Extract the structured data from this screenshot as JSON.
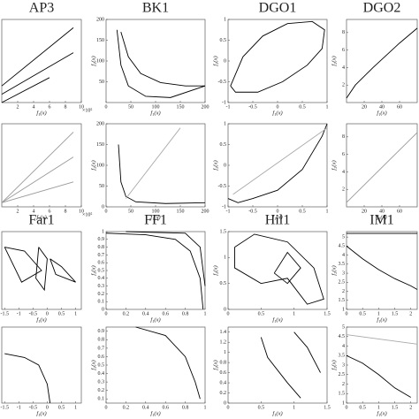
{
  "chart_data": [
    {
      "type": "line",
      "title": "AP3",
      "xlabel": "f₁(x)",
      "x_scale_label": "×10⁵",
      "xlim": [
        0,
        10
      ],
      "ylim": [
        0,
        10
      ],
      "xticks": [
        2,
        4,
        6,
        8,
        10
      ],
      "series": [
        {
          "color": "#000000",
          "x": [
            0,
            9
          ],
          "values": [
            2,
            9
          ]
        },
        {
          "color": "#000000",
          "x": [
            0,
            9
          ],
          "values": [
            1,
            6
          ]
        },
        {
          "color": "#000000",
          "x": [
            0,
            6
          ],
          "values": [
            0,
            3
          ]
        }
      ]
    },
    {
      "type": "line",
      "title": "BK1",
      "xlabel": "f₁(x)",
      "ylabel": "f₂(x)",
      "xlim": [
        0,
        200
      ],
      "ylim": [
        0,
        200
      ],
      "xticks": [
        0,
        50,
        100,
        150,
        200
      ],
      "yticks": [
        50,
        100,
        150,
        200
      ],
      "series": [
        {
          "color": "#000000",
          "x": [
            22,
            30,
            45,
            80,
            130,
            200
          ],
          "values": [
            175,
            90,
            40,
            15,
            12,
            40
          ]
        },
        {
          "color": "#000000",
          "x": [
            30,
            45,
            70,
            110,
            160,
            200
          ],
          "values": [
            170,
            110,
            70,
            48,
            40,
            40
          ]
        }
      ]
    },
    {
      "type": "line",
      "title": "DGO1",
      "xlabel": "f₁(x)",
      "ylabel": "f₂(x)",
      "xlim": [
        -1,
        1
      ],
      "ylim": [
        -1,
        1
      ],
      "xticks": [
        -1,
        -0.5,
        0,
        0.5,
        1
      ],
      "yticks": [
        -1,
        -0.5,
        0,
        0.5,
        1
      ],
      "series": [
        {
          "color": "#000000",
          "x": [
            -0.95,
            -0.7,
            -0.3,
            0.2,
            0.7,
            0.95,
            0.9,
            0.6,
            0.1,
            -0.4,
            -0.85,
            -0.95
          ],
          "values": [
            -0.6,
            0.1,
            0.6,
            0.9,
            0.95,
            0.75,
            0.3,
            -0.1,
            -0.5,
            -0.75,
            -0.75,
            -0.6
          ]
        }
      ]
    },
    {
      "type": "line",
      "title": "DGO2",
      "xlabel": "f₁(x)",
      "ylabel": "f₂(x)",
      "xlim": [
        0,
        80
      ],
      "ylim": [
        0,
        9.5
      ],
      "xticks": [
        20,
        40,
        60
      ],
      "yticks": [
        2,
        4,
        6,
        8
      ],
      "series": [
        {
          "color": "#000000",
          "x": [
            0,
            10,
            30,
            60,
            80
          ],
          "values": [
            0.5,
            2,
            4,
            6.8,
            8.5
          ]
        }
      ]
    },
    {
      "type": "line",
      "xlabel": "f₁(x)",
      "x_scale_label": "×10⁵",
      "xlim": [
        0,
        10
      ],
      "ylim": [
        0,
        10
      ],
      "xticks": [
        2,
        4,
        6,
        8,
        10
      ],
      "series": [
        {
          "color": "#999999",
          "x": [
            0,
            9
          ],
          "values": [
            0.5,
            9
          ]
        },
        {
          "color": "#999999",
          "x": [
            0,
            9
          ],
          "values": [
            0.5,
            6
          ]
        },
        {
          "color": "#999999",
          "x": [
            0,
            9
          ],
          "values": [
            0.5,
            3
          ]
        }
      ]
    },
    {
      "type": "line",
      "xlabel": "f₁(x)",
      "ylabel": "f₂(x)",
      "xlim": [
        0,
        200
      ],
      "ylim": [
        0,
        200
      ],
      "xticks": [
        0,
        50,
        100,
        150,
        200
      ],
      "yticks": [
        0,
        50,
        100,
        150,
        200
      ],
      "series": [
        {
          "color": "#000000",
          "x": [
            25,
            30,
            40,
            60,
            120,
            200
          ],
          "values": [
            150,
            60,
            25,
            12,
            8,
            10
          ]
        },
        {
          "color": "#aaaaaa",
          "x": [
            40,
            150
          ],
          "values": [
            20,
            190
          ]
        }
      ]
    },
    {
      "type": "line",
      "xlabel": "f₁(x)",
      "ylabel": "f₂(x)",
      "xlim": [
        -1,
        1
      ],
      "ylim": [
        -1,
        1
      ],
      "xticks": [
        -1,
        -0.5,
        0,
        0.5,
        1
      ],
      "yticks": [
        -1,
        -0.5,
        0,
        0.5,
        1
      ],
      "series": [
        {
          "color": "#000000",
          "x": [
            -1,
            -0.8,
            -0.5,
            0,
            0.5,
            0.9,
            1
          ],
          "values": [
            -0.8,
            -0.9,
            -0.8,
            -0.6,
            -0.1,
            0.7,
            1
          ]
        },
        {
          "color": "#aaaaaa",
          "x": [
            -0.9,
            1
          ],
          "values": [
            -0.7,
            0.9
          ]
        }
      ]
    },
    {
      "type": "line",
      "xlabel": "f₁(x)",
      "ylabel": "f₂(x)",
      "xlim": [
        0,
        80
      ],
      "ylim": [
        0,
        9.5
      ],
      "xticks": [
        20,
        40,
        60
      ],
      "yticks": [
        2,
        4,
        6,
        8
      ],
      "series": [
        {
          "color": "#999999",
          "x": [
            0,
            20,
            40,
            60,
            80
          ],
          "values": [
            0.5,
            2.5,
            4.5,
            6.5,
            8.5
          ]
        }
      ]
    },
    {
      "type": "line",
      "title": "Far1",
      "xlabel": "f₁(x)",
      "xlim": [
        -1.6,
        1.2
      ],
      "ylim": [
        -1,
        1
      ],
      "xticks": [
        -1.5,
        -1,
        -0.5,
        0,
        0.5,
        1
      ],
      "series": [
        {
          "color": "#000000",
          "x": [
            -1.5,
            -0.8,
            -0.2,
            -0.9,
            -1.5
          ],
          "values": [
            0.6,
            0.5,
            0,
            -0.3,
            0.6
          ]
        },
        {
          "color": "#000000",
          "x": [
            0.1,
            0.5,
            1,
            0.3,
            0.1
          ],
          "values": [
            0.3,
            0.1,
            -0.3,
            -0.1,
            0.3
          ]
        },
        {
          "color": "#000000",
          "x": [
            -0.3,
            0,
            -0.1,
            -0.4,
            -0.3
          ],
          "values": [
            0.6,
            0.3,
            -0.5,
            -0.2,
            0.6
          ]
        }
      ]
    },
    {
      "type": "line",
      "title": "FF1",
      "xlabel": "f₁(x)",
      "ylabel": "f₂(x)",
      "xlim": [
        0,
        1
      ],
      "ylim": [
        0,
        1
      ],
      "xticks": [
        0,
        0.2,
        0.4,
        0.6,
        0.8,
        1
      ],
      "yticks": [
        0,
        0.1,
        0.2,
        0.3,
        0.4,
        0.5,
        0.6,
        0.7,
        0.8,
        0.9,
        1
      ],
      "series": [
        {
          "color": "#000000",
          "x": [
            0,
            0.4,
            0.7,
            0.85,
            0.95,
            0.98
          ],
          "values": [
            0.98,
            0.96,
            0.9,
            0.75,
            0.4,
            0
          ]
        },
        {
          "color": "#000000",
          "x": [
            0.2,
            0.8,
            0.95,
            1
          ],
          "values": [
            1,
            0.98,
            0.8,
            0.3
          ]
        }
      ]
    },
    {
      "type": "line",
      "title": "Hil1",
      "xlabel": "f₁(x)",
      "ylabel": "f₂(x)",
      "xlim": [
        0,
        1.5
      ],
      "ylim": [
        0,
        1.5
      ],
      "xticks": [
        0,
        0.5,
        1,
        1.5
      ],
      "yticks": [
        0,
        0.5,
        1,
        1.5
      ],
      "series": [
        {
          "color": "#000000",
          "x": [
            0.1,
            0.4,
            0.9,
            1.3,
            1.45,
            1.2,
            0.9,
            0.5,
            0.1,
            0.1
          ],
          "values": [
            1.2,
            1.45,
            1.3,
            0.8,
            0.2,
            0.1,
            0.6,
            0.5,
            0.8,
            1.2
          ]
        },
        {
          "color": "#000000",
          "x": [
            0.7,
            0.9,
            1.1,
            0.9,
            0.7
          ],
          "values": [
            0.7,
            1.1,
            0.8,
            0.5,
            0.7
          ]
        }
      ]
    },
    {
      "type": "line",
      "title": "IM1",
      "xlabel": "f₁(x)",
      "ylabel": "f₂(x)",
      "xlim": [
        0,
        2.2
      ],
      "ylim": [
        1,
        5.3
      ],
      "xticks": [
        0,
        0.5,
        1,
        1.5,
        2
      ],
      "yticks": [
        1,
        1.5,
        2,
        2.5,
        3,
        3.5,
        4,
        4.5,
        5
      ],
      "series": [
        {
          "color": "#000000",
          "x": [
            0,
            0.5,
            1,
            1.5,
            2,
            2.2
          ],
          "values": [
            4.5,
            3.8,
            3.2,
            2.7,
            2.3,
            2.1
          ]
        },
        {
          "color": "#000000",
          "x": [
            0,
            2.2
          ],
          "values": [
            5.2,
            5.2
          ]
        }
      ]
    },
    {
      "type": "line",
      "xlabel": "f₁(x)",
      "xlim": [
        -1.6,
        1.2
      ],
      "ylim": [
        -1,
        1
      ],
      "xticks": [
        -1.5,
        -1,
        -0.5,
        0,
        0.5,
        1
      ],
      "series": [
        {
          "color": "#000000",
          "x": [
            -1.5,
            -0.8,
            -0.3,
            0,
            0.1
          ],
          "values": [
            0.3,
            0.2,
            0,
            -0.5,
            -1
          ]
        }
      ]
    },
    {
      "type": "line",
      "xlabel": "f₁(x)",
      "ylabel": "f₂(x)",
      "xlim": [
        0,
        1
      ],
      "ylim": [
        0.05,
        0.95
      ],
      "xticks": [
        0,
        0.2,
        0.4,
        0.6,
        0.8,
        1
      ],
      "yticks": [
        0.1,
        0.2,
        0.3,
        0.4,
        0.5,
        0.6,
        0.7,
        0.8,
        0.9
      ],
      "series": [
        {
          "color": "#000000",
          "x": [
            0.3,
            0.6,
            0.8,
            0.9,
            0.95
          ],
          "values": [
            0.95,
            0.85,
            0.6,
            0.3,
            0.1
          ]
        }
      ]
    },
    {
      "type": "line",
      "xlabel": "f₁(x)",
      "ylabel": "f₂(x)",
      "xlim": [
        0,
        1.5
      ],
      "ylim": [
        0,
        1.5
      ],
      "xticks": [
        0,
        0.5,
        1,
        1.5
      ],
      "yticks": [
        0,
        0.2,
        0.4,
        0.6,
        0.8,
        1,
        1.2,
        1.4
      ],
      "series": [
        {
          "color": "#000000",
          "x": [
            0.5,
            0.6,
            0.9,
            1.1
          ],
          "values": [
            1.3,
            0.9,
            0.4,
            0.1
          ]
        },
        {
          "color": "#000000",
          "x": [
            1,
            1.2,
            1.4
          ],
          "values": [
            1.4,
            1.1,
            0.6
          ]
        }
      ]
    },
    {
      "type": "line",
      "xlabel": "f₁(x)",
      "ylabel": "f₂(x)",
      "xlim": [
        0,
        2.2
      ],
      "ylim": [
        1,
        5
      ],
      "xticks": [
        0,
        0.5,
        1,
        1.5,
        2
      ],
      "yticks": [
        1,
        1.5,
        2,
        2.5,
        3,
        3.5,
        4,
        4.5,
        5
      ],
      "series": [
        {
          "color": "#000000",
          "x": [
            0,
            0.5,
            1,
            1.5,
            2
          ],
          "values": [
            3.5,
            3.1,
            2.5,
            1.8,
            1.3
          ]
        },
        {
          "color": "#aaaaaa",
          "x": [
            0,
            2.2
          ],
          "values": [
            4.6,
            4.1
          ]
        }
      ]
    }
  ]
}
